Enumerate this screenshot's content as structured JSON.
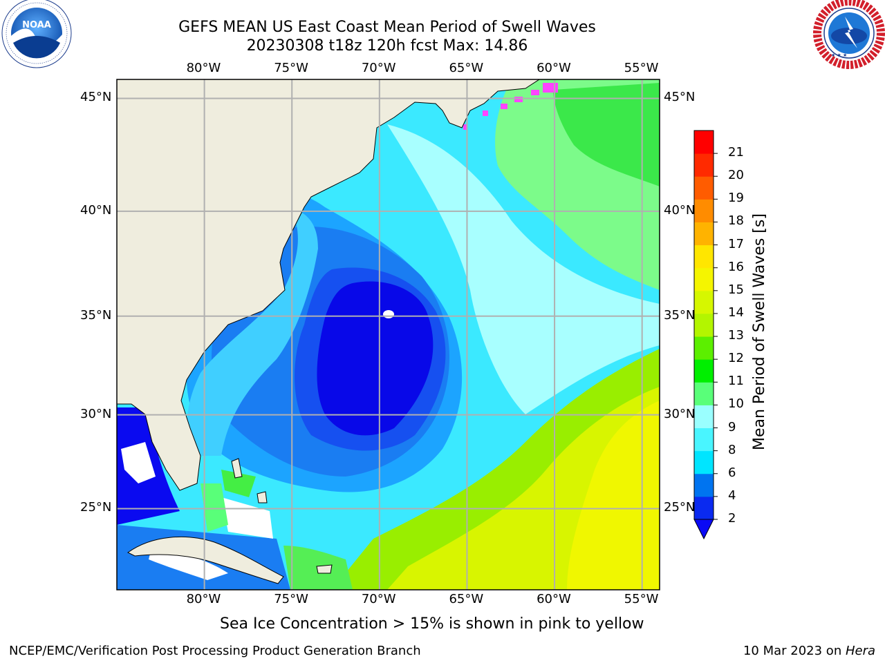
{
  "header": {
    "title_line1": "GEFS MEAN US East Coast Mean Period of Swell Waves",
    "title_line2": "20230308 t18z 120h fcst   Max: 14.86"
  },
  "logos": {
    "left": {
      "name": "noaa-logo",
      "text": "NOAA",
      "ring_text": "NATIONAL OCEANIC AND ATMOSPHERIC ADMINISTRATION · U.S. DEPARTMENT OF COMMERCE"
    },
    "right": {
      "name": "nws-logo",
      "ring_text": "NATIONAL WEATHER SERVICE"
    }
  },
  "map": {
    "lon_labels": [
      "80°W",
      "75°W",
      "70°W",
      "65°W",
      "60°W",
      "55°W"
    ],
    "lon_values": [
      -80,
      -75,
      -70,
      -65,
      -60,
      -55
    ],
    "lat_labels": [
      "45°N",
      "40°N",
      "35°N",
      "30°N",
      "25°N"
    ],
    "lat_values": [
      45,
      40,
      35,
      30,
      25
    ],
    "lon_range": [
      -85,
      -54
    ],
    "lat_range": [
      20.5,
      45.8
    ],
    "land_color": "#efedde",
    "grid_color": "#b0b0b0"
  },
  "colorbar": {
    "label": "Mean Period of Swell Waves [s]",
    "ticks": [
      "2",
      "4",
      "6",
      "8",
      "9",
      "10",
      "11",
      "12",
      "13",
      "14",
      "15",
      "16",
      "17",
      "18",
      "19",
      "20",
      "21"
    ],
    "colors": [
      "#0a2af0",
      "#0074f0",
      "#00e5ff",
      "#49f5ff",
      "#9affff",
      "#59ff79",
      "#00ef00",
      "#5cef00",
      "#b3f500",
      "#d6f700",
      "#f5f500",
      "#ffe600",
      "#ffb300",
      "#ff8c00",
      "#ff5c00",
      "#ff2a00",
      "#ff0000"
    ],
    "under_color": "#0a0af5"
  },
  "footer": {
    "note": "Sea Ice Concentration > 15% is shown in pink to yellow",
    "left": "NCEP/EMC/Verification Post Processing Product Generation Branch",
    "right_date": "10 Mar 2023 on ",
    "right_host": "Hera"
  }
}
